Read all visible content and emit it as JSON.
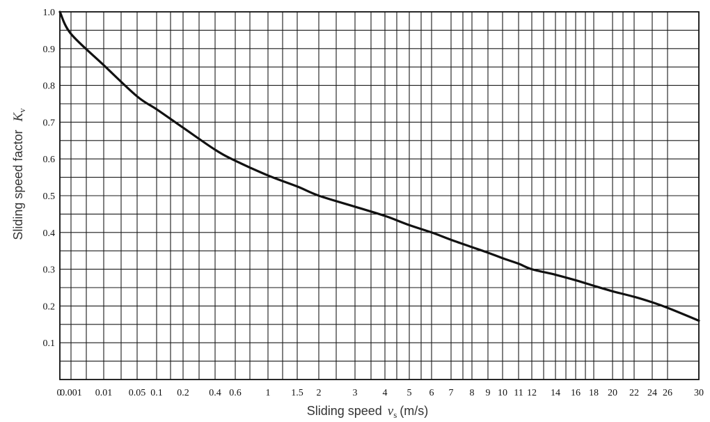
{
  "chart_data": {
    "type": "line",
    "xlabel": {
      "text": "Sliding speed",
      "symbol": "v",
      "subscript": "s",
      "unit": "(m/s)"
    },
    "ylabel": {
      "text": "Sliding speed factor",
      "symbol": "K",
      "subscript": "v"
    },
    "x_ticks": [
      "0",
      "0.001",
      "0.01",
      "0.05",
      "0.1",
      "0.2",
      "0.4",
      "0.6",
      "1",
      "1.5",
      "2",
      "3",
      "4",
      "5",
      "6",
      "7",
      "8",
      "9",
      "10",
      "11",
      "12",
      "14",
      "16",
      "18",
      "20",
      "22",
      "24",
      "26",
      "30"
    ],
    "y_ticks": [
      "0.1",
      "0.2",
      "0.3",
      "0.4",
      "0.5",
      "0.6",
      "0.7",
      "0.8",
      "0.9",
      "1.0"
    ],
    "ylim": [
      0,
      1.0
    ],
    "grid": true,
    "series": [
      {
        "x": [
          "0",
          "0.001",
          "0.01",
          "0.05",
          "0.1",
          "0.2",
          "0.4",
          "0.6",
          "1",
          "1.5",
          "2",
          "3",
          "4",
          "5",
          "6",
          "7",
          "8",
          "9",
          "10",
          "11",
          "12",
          "14",
          "16",
          "18",
          "20",
          "22",
          "24",
          "26",
          "30"
        ],
        "y": [
          1.0,
          0.94,
          0.855,
          0.77,
          0.735,
          0.685,
          0.625,
          0.595,
          0.555,
          0.525,
          0.5,
          0.47,
          0.445,
          0.42,
          0.4,
          0.38,
          0.36,
          0.345,
          0.33,
          0.315,
          0.3,
          0.285,
          0.27,
          0.255,
          0.24,
          0.225,
          0.21,
          0.195,
          0.16
        ]
      }
    ]
  }
}
